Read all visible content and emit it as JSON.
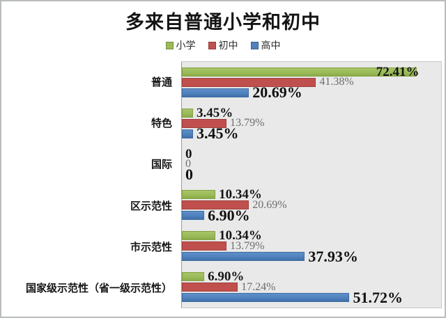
{
  "chart_data": {
    "type": "bar",
    "orientation": "horizontal",
    "title": "多来自普通小学和初中",
    "legend_position": "top",
    "grid": false,
    "xlim": [
      0,
      80
    ],
    "plot_bg_color": "#e9e9e9",
    "categories": [
      "普通",
      "特色",
      "国际",
      "区示范性",
      "市示范性",
      "国家级示范性（省一级示范性）"
    ],
    "series": [
      {
        "name": "小学",
        "color": "#9bbb59",
        "values": [
          72.41,
          3.45,
          0,
          10.34,
          10.34,
          6.9
        ],
        "labels": [
          "72.41%",
          "3.45%",
          "0",
          "10.34%",
          "10.34%",
          "6.90%"
        ]
      },
      {
        "name": "初中",
        "color": "#c0504d",
        "values": [
          41.38,
          13.79,
          0,
          20.69,
          13.79,
          17.24
        ],
        "labels": [
          "41.38%",
          "13.79%",
          "0",
          "20.69%",
          "13.79%",
          "17.24%"
        ]
      },
      {
        "name": "高中",
        "color": "#4f81bd",
        "values": [
          20.69,
          3.45,
          0,
          6.9,
          37.93,
          51.72
        ],
        "labels": [
          "20.69%",
          "3.45%",
          "0",
          "6.90%",
          "37.93%",
          "51.72%"
        ]
      }
    ]
  }
}
